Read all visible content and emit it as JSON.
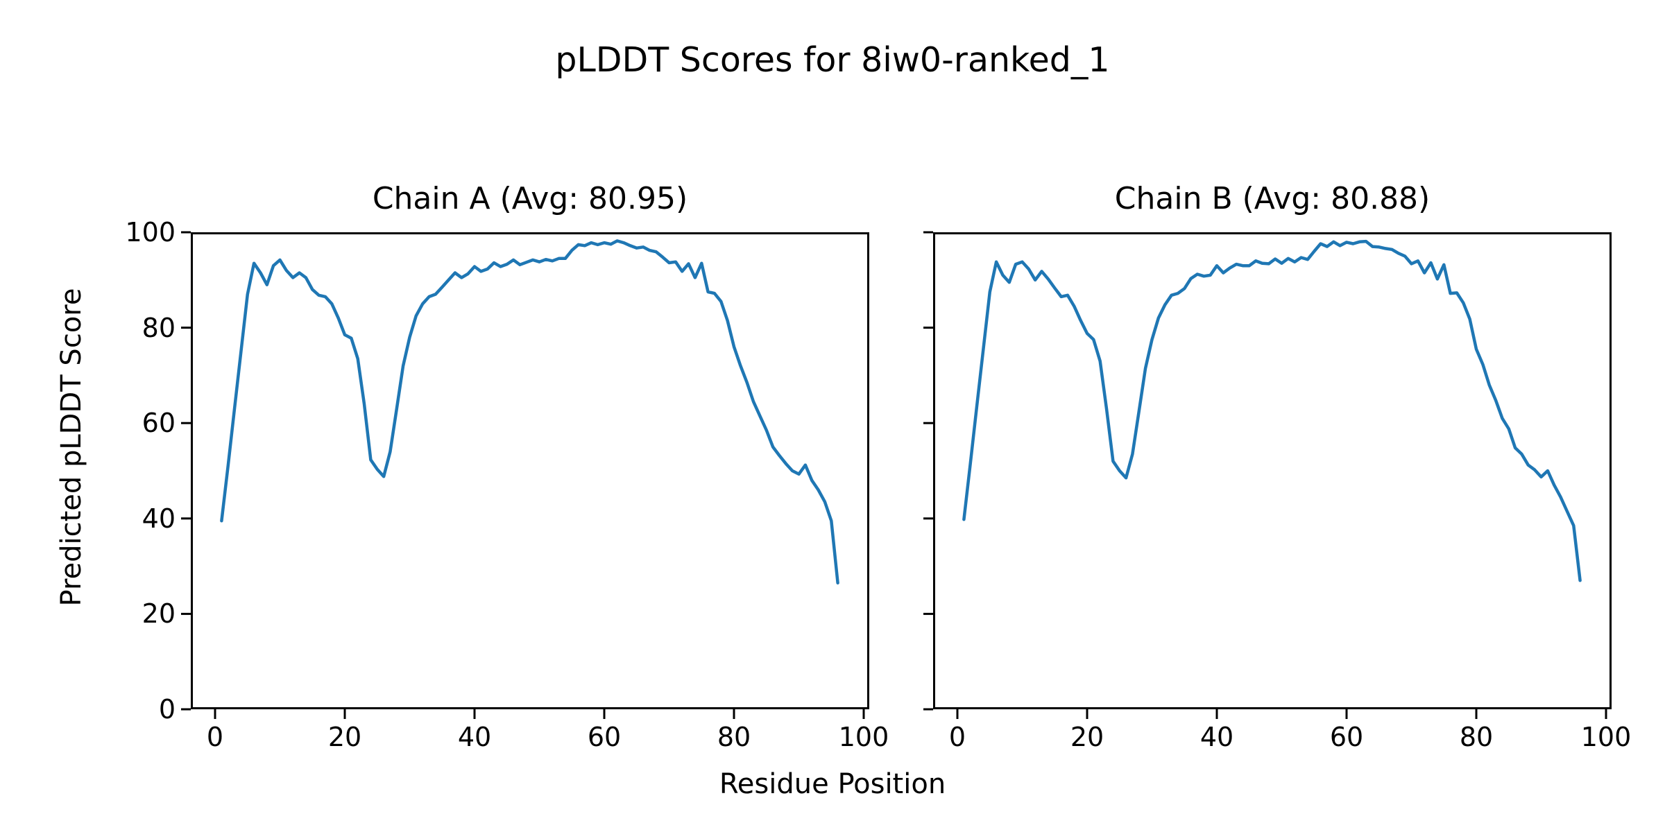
{
  "figure": {
    "title": "pLDDT Scores for 8iw0-ranked_1",
    "xlabel": "Residue Position",
    "ylabel": "Predicted pLDDT Score",
    "background_color": "#ffffff",
    "line_color": "#1f77b4",
    "axis_color": "#000000"
  },
  "chart_data": [
    {
      "type": "line",
      "title": "Chain A (Avg: 80.95)",
      "chain": "A",
      "average_plddt": 80.95,
      "x_start": 1,
      "x_step": 1,
      "xticks": [
        0,
        20,
        40,
        60,
        80,
        100
      ],
      "yticks": [
        0,
        20,
        40,
        60,
        80,
        100
      ],
      "xlim": [
        -3.75,
        100.75
      ],
      "ylim": [
        0,
        100
      ],
      "grid": false,
      "legend": "none",
      "show_y_tick_labels": true,
      "values": [
        39.5,
        51,
        63,
        75,
        87,
        93.5,
        91.5,
        89,
        93,
        94.2,
        92,
        90.5,
        91.5,
        90.5,
        88,
        86.8,
        86.5,
        85,
        82,
        78.5,
        77.8,
        73.5,
        64,
        52.3,
        50.3,
        48.8,
        54,
        63,
        72,
        78,
        82.5,
        85,
        86.5,
        87,
        88.5,
        90,
        91.5,
        90.5,
        91.3,
        92.8,
        91.8,
        92.3,
        93.6,
        92.8,
        93.3,
        94.2,
        93.2,
        93.7,
        94.2,
        93.8,
        94.3,
        94,
        94.5,
        94.5,
        96.2,
        97.4,
        97.2,
        97.8,
        97.4,
        97.8,
        97.5,
        98.2,
        97.8,
        97.2,
        96.7,
        96.9,
        96.2,
        95.9,
        94.8,
        93.6,
        93.8,
        91.8,
        93.4,
        90.5,
        93.5,
        87.5,
        87.2,
        85.5,
        81.5,
        76,
        72,
        68.5,
        64.5,
        61.5,
        58.5,
        55,
        53.2,
        51.5,
        50,
        49.3,
        51.2,
        48,
        46,
        43.5,
        39.5,
        26.5
      ]
    },
    {
      "type": "line",
      "title": "Chain B (Avg: 80.88)",
      "chain": "B",
      "average_plddt": 80.88,
      "x_start": 1,
      "x_step": 1,
      "xticks": [
        0,
        20,
        40,
        60,
        80,
        100
      ],
      "yticks": [
        0,
        20,
        40,
        60,
        80,
        100
      ],
      "xlim": [
        -3.75,
        100.75
      ],
      "ylim": [
        0,
        100
      ],
      "grid": false,
      "legend": "none",
      "show_y_tick_labels": false,
      "values": [
        39.8,
        51.5,
        63.5,
        75.5,
        87.5,
        93.8,
        91,
        89.5,
        93.3,
        93.8,
        92.3,
        90,
        91.8,
        90.2,
        88.3,
        86.5,
        86.8,
        84.5,
        81.5,
        78.8,
        77.5,
        73,
        63,
        52,
        50,
        48.5,
        53.5,
        62.5,
        71.5,
        77.5,
        82,
        84.8,
        86.8,
        87.2,
        88.2,
        90.3,
        91.2,
        90.8,
        91,
        93,
        91.5,
        92.5,
        93.3,
        93,
        93,
        94,
        93.5,
        93.4,
        94.4,
        93.5,
        94.5,
        93.8,
        94.7,
        94.3,
        96,
        97.6,
        97,
        98,
        97.2,
        97.9,
        97.6,
        98,
        98.1,
        97,
        96.9,
        96.6,
        96.4,
        95.6,
        95,
        93.4,
        94,
        91.5,
        93.6,
        90.2,
        93.2,
        87.2,
        87.3,
        85.2,
        81.8,
        75.5,
        72.3,
        68,
        64.8,
        61,
        58.8,
        54.8,
        53.5,
        51.2,
        50.2,
        48.7,
        50,
        47,
        44.5,
        41.5,
        38.5,
        27
      ]
    }
  ]
}
